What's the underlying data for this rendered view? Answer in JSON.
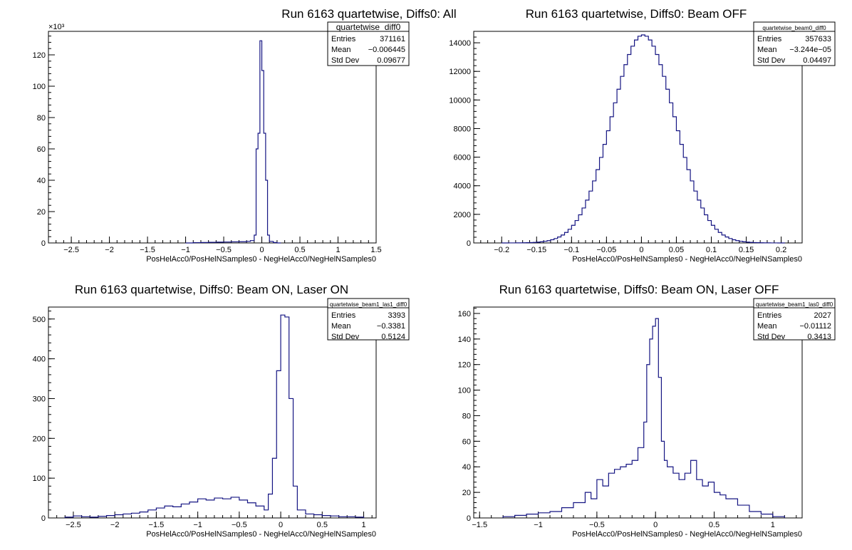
{
  "chart_data": [
    {
      "type": "histogram",
      "title": "Run 6163 quartetwise, Diffs0: All",
      "xlabel": "PosHelAcc0/PosHelNSamples0 - NegHelAcc0/NegHelNSamples0",
      "ylabel": "",
      "y_exponent_label": "×10³",
      "xlim": [
        -2.8,
        1.5
      ],
      "ylim": [
        0,
        135
      ],
      "xticks": [
        -2.5,
        -2,
        -1.5,
        -1,
        -0.5,
        0,
        0.5,
        1,
        1.5
      ],
      "xtick_labels": [
        "−2.5",
        "−2",
        "−1.5",
        "−1",
        "−0.5",
        "0",
        "0.5",
        "1",
        "1.5"
      ],
      "yticks": [
        0,
        20,
        40,
        60,
        80,
        100,
        120
      ],
      "ytick_labels": [
        "0",
        "20",
        "40",
        "60",
        "80",
        "100",
        "120"
      ],
      "stats": {
        "name": "quartetwise_diff0",
        "rows": [
          {
            "label": "Entries",
            "value": "371161"
          },
          {
            "label": "Mean",
            "value": "−0.006445"
          },
          {
            "label": "Std Dev",
            "value": "0.09677"
          }
        ]
      },
      "x": [
        -1.0,
        -0.9,
        -0.8,
        -0.7,
        -0.6,
        -0.5,
        -0.4,
        -0.3,
        -0.2,
        -0.15,
        -0.1,
        -0.075,
        -0.05,
        -0.025,
        0,
        0.025,
        0.05,
        0.075,
        0.1,
        0.15,
        0.2
      ],
      "values": [
        0,
        0.2,
        0.3,
        0.4,
        0.5,
        0.6,
        0.7,
        0.8,
        1.0,
        1.5,
        5,
        60,
        70,
        129,
        110,
        70,
        40,
        5,
        1,
        0.3,
        0
      ]
    },
    {
      "type": "histogram",
      "title": "Run 6163 quartetwise, Diffs0: Beam OFF",
      "xlabel": "PosHelAcc0/PosHelNSamples0 - NegHelAcc0/NegHelNSamples0",
      "ylabel": "",
      "xlim": [
        -0.24,
        0.23
      ],
      "ylim": [
        0,
        14800
      ],
      "xticks": [
        -0.2,
        -0.15,
        -0.1,
        -0.05,
        0,
        0.05,
        0.1,
        0.15,
        0.2
      ],
      "xtick_labels": [
        "−0.2",
        "−0.15",
        "−0.1",
        "−0.05",
        "0",
        "0.05",
        "0.1",
        "0.15",
        "0.2"
      ],
      "yticks": [
        0,
        2000,
        4000,
        6000,
        8000,
        10000,
        12000,
        14000
      ],
      "ytick_labels": [
        "0",
        "2000",
        "4000",
        "6000",
        "8000",
        "10000",
        "12000",
        "14000"
      ],
      "stats": {
        "name": "quartetwise_beam0_diff0",
        "rows": [
          {
            "label": "Entries",
            "value": "357633"
          },
          {
            "label": "Mean",
            "value": "−3.244e−05"
          },
          {
            "label": "Std Dev",
            "value": "0.04497"
          }
        ]
      },
      "distribution": {
        "kind": "gaussian",
        "mean": 0.0,
        "sigma": 0.045,
        "peak": 14550,
        "bin_width": 0.005,
        "range": [
          -0.2,
          0.2
        ]
      }
    },
    {
      "type": "histogram",
      "title": "Run 6163 quartetwise, Diffs0: Beam ON, Laser ON",
      "xlabel": "PosHelAcc0/PosHelNSamples0 - NegHelAcc0/NegHelNSamples0",
      "ylabel": "",
      "xlim": [
        -2.8,
        1.15
      ],
      "ylim": [
        0,
        530
      ],
      "xticks": [
        -2.5,
        -2,
        -1.5,
        -1,
        -0.5,
        0,
        0.5,
        1
      ],
      "xtick_labels": [
        "−2.5",
        "−2",
        "−1.5",
        "−1",
        "−0.5",
        "0",
        "0.5",
        "1"
      ],
      "yticks": [
        0,
        100,
        200,
        300,
        400,
        500
      ],
      "ytick_labels": [
        "0",
        "100",
        "200",
        "300",
        "400",
        "500"
      ],
      "stats": {
        "name": "quartetwise_beam1_las1_diff0",
        "rows": [
          {
            "label": "Entries",
            "value": "3393"
          },
          {
            "label": "Mean",
            "value": "−0.3381"
          },
          {
            "label": "Std Dev",
            "value": "0.5124"
          }
        ]
      },
      "x": [
        -2.6,
        -2.5,
        -2.4,
        -2.3,
        -2.2,
        -2.1,
        -2.0,
        -1.9,
        -1.8,
        -1.7,
        -1.6,
        -1.5,
        -1.4,
        -1.3,
        -1.2,
        -1.1,
        -1.0,
        -0.9,
        -0.8,
        -0.7,
        -0.6,
        -0.5,
        -0.4,
        -0.3,
        -0.2,
        -0.15,
        -0.1,
        -0.05,
        0,
        0.05,
        0.1,
        0.15,
        0.2,
        0.3,
        0.4,
        0.5,
        0.6,
        0.7,
        0.8,
        0.9
      ],
      "values": [
        2,
        5,
        3,
        2,
        4,
        6,
        8,
        10,
        12,
        15,
        20,
        25,
        30,
        28,
        35,
        40,
        48,
        45,
        50,
        48,
        52,
        45,
        38,
        30,
        20,
        60,
        150,
        370,
        510,
        505,
        300,
        80,
        20,
        10,
        8,
        6,
        5,
        3,
        3,
        2
      ]
    },
    {
      "type": "histogram",
      "title": "Run 6163 quartetwise, Diffs0: Beam ON, Laser OFF",
      "xlabel": "PosHelAcc0/PosHelNSamples0 - NegHelAcc0/NegHelNSamples0",
      "ylabel": "",
      "xlim": [
        -1.55,
        1.25
      ],
      "ylim": [
        0,
        165
      ],
      "xticks": [
        -1.5,
        -1,
        -0.5,
        0,
        0.5,
        1
      ],
      "xtick_labels": [
        "−1.5",
        "−1",
        "−0.5",
        "0",
        "0.5",
        "1"
      ],
      "yticks": [
        0,
        20,
        40,
        60,
        80,
        100,
        120,
        140,
        160
      ],
      "ytick_labels": [
        "0",
        "20",
        "40",
        "60",
        "80",
        "100",
        "120",
        "140",
        "160"
      ],
      "stats": {
        "name": "quartetwise_beam1_las0_diff0",
        "rows": [
          {
            "label": "Entries",
            "value": "2027"
          },
          {
            "label": "Mean",
            "value": "−0.01112"
          },
          {
            "label": "Std Dev",
            "value": "0.3413"
          }
        ]
      },
      "x": [
        -1.3,
        -1.2,
        -1.1,
        -1.0,
        -0.9,
        -0.8,
        -0.7,
        -0.6,
        -0.55,
        -0.5,
        -0.45,
        -0.4,
        -0.35,
        -0.3,
        -0.25,
        -0.2,
        -0.15,
        -0.1,
        -0.075,
        -0.05,
        -0.025,
        0,
        0.025,
        0.05,
        0.075,
        0.1,
        0.15,
        0.2,
        0.25,
        0.3,
        0.35,
        0.4,
        0.45,
        0.5,
        0.55,
        0.6,
        0.7,
        0.8,
        0.9,
        1.0
      ],
      "values": [
        1,
        2,
        3,
        4,
        5,
        8,
        12,
        20,
        15,
        30,
        25,
        35,
        38,
        40,
        42,
        45,
        55,
        75,
        120,
        140,
        150,
        156,
        110,
        60,
        45,
        40,
        35,
        30,
        35,
        45,
        30,
        25,
        28,
        20,
        18,
        15,
        10,
        5,
        3,
        1
      ]
    }
  ]
}
